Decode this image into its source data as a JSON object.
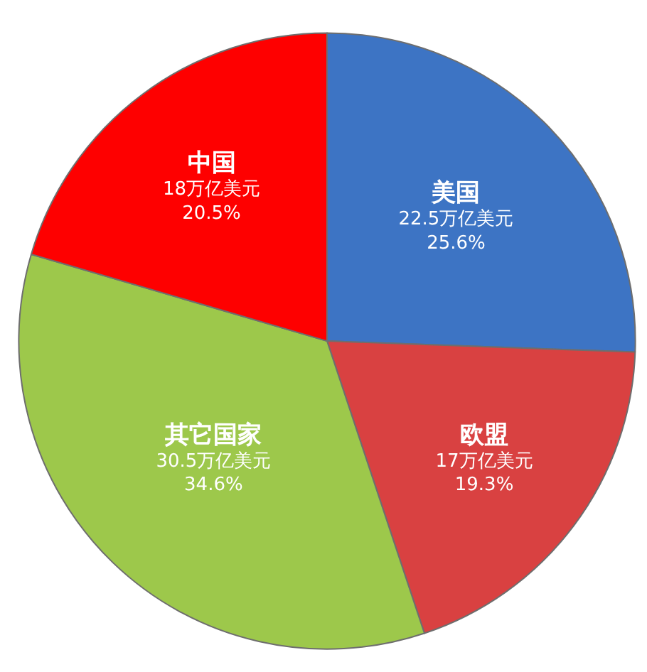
{
  "chart_data": {
    "type": "pie",
    "categories": [
      "美国",
      "欧盟",
      "其它国家",
      "中国"
    ],
    "values": [
      22.5,
      17,
      30.5,
      18
    ],
    "value_labels": [
      "22.5万亿美元\n25.6%",
      "17万亿美元\n19.3%",
      "30.5万亿美元\n34.6%",
      "18万亿美元\n20.5%"
    ],
    "colors": [
      "#3d74c4",
      "#d94141",
      "#9dc84b",
      "#fe0000"
    ],
    "legend": false
  }
}
